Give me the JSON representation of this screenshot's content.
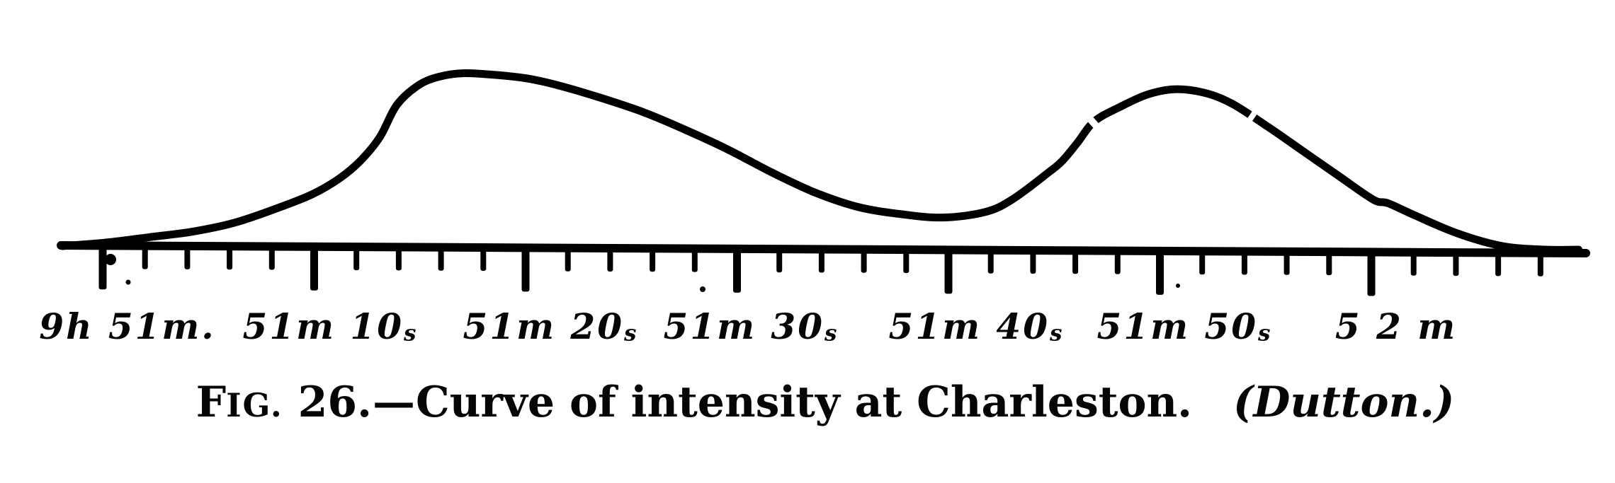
{
  "colors": {
    "ink": "#000000",
    "paper": "#ffffff"
  },
  "caption": {
    "fig_initial": "F",
    "fig_smallcaps": "IG.",
    "number": "26.",
    "dash": "—",
    "title": "Curve of intensity at Charleston.",
    "attribution": "(Dutton.)",
    "full_text": "Fig. 26.—Curve of intensity at Charleston. (Dutton.)"
  },
  "chart_data": {
    "type": "line",
    "title": "Curve of intensity at Charleston",
    "attribution": "Dutton",
    "xlabel": "",
    "ylabel": "",
    "grid": false,
    "legend": false,
    "x_axis": {
      "tick_labels": [
        "9h 51m.",
        "51m 10s",
        "51m 20s",
        "51m 30s",
        "51m 40s",
        "51m 50s",
        "52 m"
      ],
      "labels": [
        {
          "main": "9h 51m.",
          "sub": ""
        },
        {
          "main": "51m 10",
          "sub": "s"
        },
        {
          "main": "51m 20",
          "sub": "s"
        },
        {
          "main": "51m 30",
          "sub": "s"
        },
        {
          "main": "51m 40",
          "sub": "s"
        },
        {
          "main": "51m 50",
          "sub": "s"
        },
        {
          "main": "5 2 m",
          "sub": ""
        }
      ],
      "tick_label_t_seconds": [
        0,
        10,
        20,
        30,
        40,
        50,
        60
      ],
      "major_tick_interval_seconds": 10,
      "minor_tick_interval_seconds": 2,
      "range_seconds": [
        -2,
        70
      ]
    },
    "y_axis": {
      "ticks_visible": false,
      "normalized_range": [
        0,
        1
      ]
    },
    "series": [
      {
        "name": "intensity",
        "points": [
          [
            -1.9,
            0.02
          ],
          [
            0.2,
            0.04
          ],
          [
            2.2,
            0.07
          ],
          [
            4.2,
            0.1
          ],
          [
            6.2,
            0.15
          ],
          [
            8.2,
            0.23
          ],
          [
            9.9,
            0.31
          ],
          [
            11.2,
            0.4
          ],
          [
            12.2,
            0.5
          ],
          [
            13.1,
            0.63
          ],
          [
            13.9,
            0.81
          ],
          [
            14.9,
            0.92
          ],
          [
            15.9,
            0.97
          ],
          [
            17.1,
            0.99
          ],
          [
            18.6,
            0.98
          ],
          [
            20.1,
            0.96
          ],
          [
            21.6,
            0.92
          ],
          [
            23.6,
            0.85
          ],
          [
            25.6,
            0.77
          ],
          [
            27.6,
            0.67
          ],
          [
            29.6,
            0.56
          ],
          [
            31.7,
            0.43
          ],
          [
            33.7,
            0.32
          ],
          [
            35.7,
            0.24
          ],
          [
            37.7,
            0.2
          ],
          [
            39.7,
            0.18
          ],
          [
            41.7,
            0.21
          ],
          [
            43.0,
            0.28
          ],
          [
            44.7,
            0.43
          ],
          [
            45.4,
            0.5
          ],
          [
            46.1,
            0.6
          ],
          [
            46.9,
            0.72
          ],
          [
            48.1,
            0.8
          ],
          [
            49.4,
            0.87
          ],
          [
            50.7,
            0.9
          ],
          [
            52.1,
            0.88
          ],
          [
            53.4,
            0.82
          ],
          [
            55.1,
            0.69
          ],
          [
            56.8,
            0.55
          ],
          [
            58.5,
            0.41
          ],
          [
            60.1,
            0.28
          ],
          [
            60.8,
            0.26
          ],
          [
            62.1,
            0.19
          ],
          [
            64.1,
            0.09
          ],
          [
            66.2,
            0.02
          ],
          [
            68.2,
            0.0
          ],
          [
            69.8,
            0.0
          ]
        ]
      }
    ],
    "features": {
      "first_peak_t_seconds": 17,
      "first_peak_intensity": 0.99,
      "trough_t_seconds": 39,
      "trough_intensity": 0.18,
      "second_peak_t_seconds": 50.5,
      "second_peak_intensity": 0.9
    }
  }
}
